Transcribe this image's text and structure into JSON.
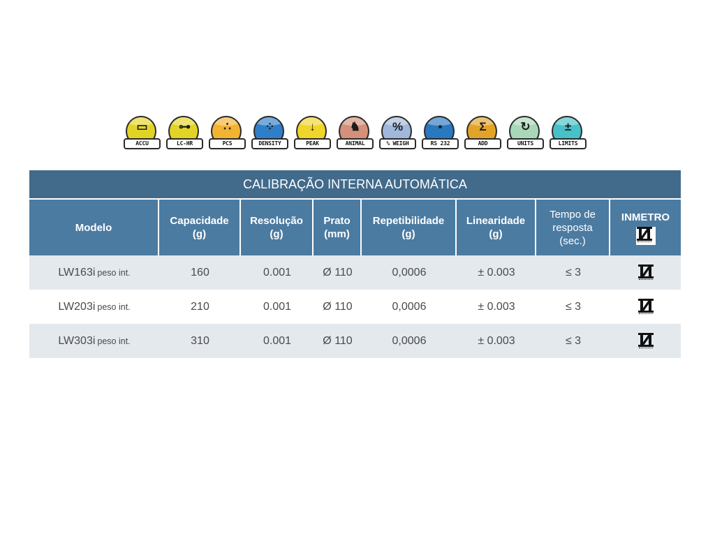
{
  "badges": [
    {
      "label": "ACCU",
      "glyph": "▭",
      "color": "#e2d426"
    },
    {
      "label": "LC-HR",
      "glyph": "⊶",
      "color": "#e2d426"
    },
    {
      "label": "PCS",
      "glyph": "∴",
      "color": "#f3b332"
    },
    {
      "label": "DENSITY",
      "glyph": "⁘",
      "color": "#2f7fc8"
    },
    {
      "label": "PEAK",
      "glyph": "↓",
      "color": "#f0d52a"
    },
    {
      "label": "ANIMAL",
      "glyph": "♞",
      "color": "#d4907a"
    },
    {
      "label": "% WEIGH",
      "glyph": "%",
      "color": "#9fb8dc"
    },
    {
      "label": "RS 232",
      "glyph": "▪",
      "color": "#2a78c0"
    },
    {
      "label": "ADD",
      "glyph": "Σ",
      "color": "#e2a428"
    },
    {
      "label": "UNITS",
      "glyph": "↻",
      "color": "#a9d8b8"
    },
    {
      "label": "LIMITS",
      "glyph": "±",
      "color": "#48c0c8"
    }
  ],
  "table": {
    "title": "CALIBRAÇÃO INTERNA AUTOMÁTICA",
    "headers": [
      {
        "line1": "Modelo",
        "line2": "",
        "line3": ""
      },
      {
        "line1": "Capacidade",
        "line2": "(g)",
        "line3": ""
      },
      {
        "line1": "Resolução",
        "line2": "(g)",
        "line3": ""
      },
      {
        "line1": "Prato",
        "line2": "(mm)",
        "line3": ""
      },
      {
        "line1": "Repetibilidade",
        "line2": "(g)",
        "line3": ""
      },
      {
        "line1": "Linearidade",
        "line2": "(g)",
        "line3": ""
      },
      {
        "line1": "Tempo de",
        "line2": "resposta",
        "line3": "(sec.)"
      },
      {
        "line1": "INMETRO",
        "line2": "",
        "line3": ""
      }
    ],
    "rows": [
      {
        "model": "LW163i",
        "suffix": "peso int.",
        "capacity": "160",
        "resolution": "0.001",
        "pan": "Ø 110",
        "repeatability": "0,0006",
        "linearity": "± 0.003",
        "response": "≤ 3"
      },
      {
        "model": "LW203i",
        "suffix": "peso int.",
        "capacity": "210",
        "resolution": "0.001",
        "pan": "Ø 110",
        "repeatability": "0,0006",
        "linearity": "± 0.003",
        "response": "≤ 3"
      },
      {
        "model": "LW303i",
        "suffix": "peso int.",
        "capacity": "310",
        "resolution": "0.001",
        "pan": "Ø 110",
        "repeatability": "0,0006",
        "linearity": "± 0.003",
        "response": "≤ 3"
      }
    ]
  }
}
